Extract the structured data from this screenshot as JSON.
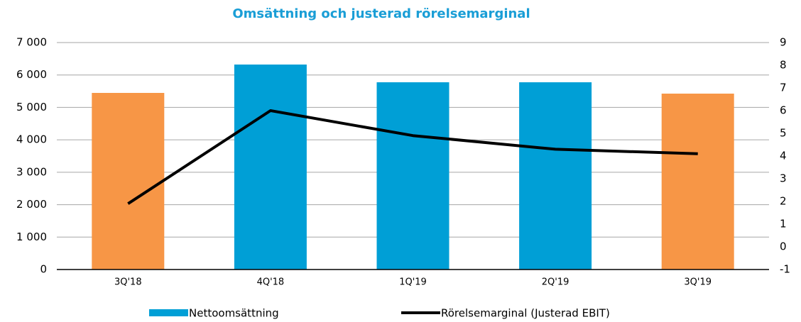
{
  "chart_data": {
    "type": "bar",
    "title": "Omsättning och justerad rörelsemarginal",
    "categories": [
      "3Q'18",
      "4Q'18",
      "1Q'19",
      "2Q'19",
      "3Q'19"
    ],
    "series": [
      {
        "name": "Nettoomsättning",
        "type": "bar",
        "color": "#009fd6",
        "colors": [
          "#f79646",
          "#009fd6",
          "#009fd6",
          "#009fd6",
          "#f79646"
        ],
        "values": [
          5447,
          6322,
          5775,
          5775,
          5425
        ]
      },
      {
        "name": "Rörelsemarginal (Justerad EBIT)",
        "type": "line",
        "axis": "y2",
        "color": "#000000",
        "values": [
          1.9,
          6.0,
          4.9,
          4.3,
          4.1
        ]
      }
    ],
    "ylim": [
      0,
      7000
    ],
    "yticks": [
      0,
      {
        "value": 1000,
        "label": "1 000"
      },
      {
        "value": 2000,
        "label": "2 000"
      },
      {
        "value": 3000,
        "label": "3 000"
      },
      {
        "value": 4000,
        "label": "4 000"
      },
      {
        "value": 5000,
        "label": "5 000"
      },
      {
        "value": 6000,
        "label": "6 000"
      },
      {
        "value": 7000,
        "label": "7 000"
      }
    ],
    "y2lim": [
      -1,
      9
    ],
    "y2ticks": [
      -1,
      0,
      1,
      2,
      3,
      4,
      5,
      6,
      7,
      8,
      9
    ],
    "grid": true,
    "legend": "bottom"
  }
}
